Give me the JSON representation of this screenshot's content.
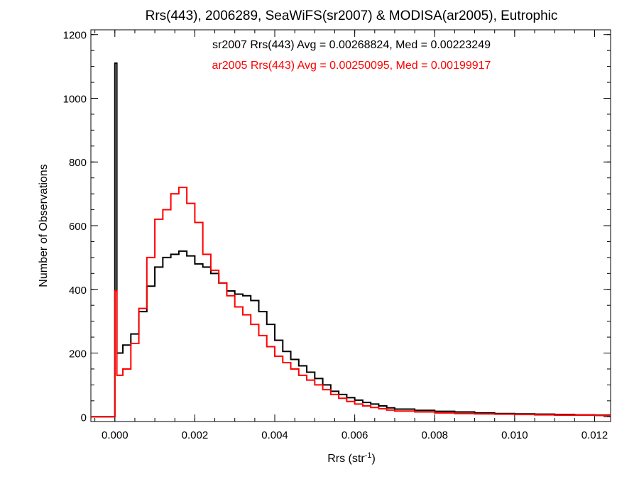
{
  "chart_data": {
    "type": "line",
    "title": "Rrs(443), 2006289, SeaWiFS(sr2007) & MODISA(ar2005), Eutrophic",
    "xlabel": "Rrs (str",
    "xlabel_sup": "-1",
    "xlabel_close": ")",
    "ylabel": "Number of Observations",
    "xlim": [
      -0.0006,
      0.0124
    ],
    "ylim": [
      -15,
      1215
    ],
    "xticks": [
      0.0,
      0.002,
      0.004,
      0.006,
      0.008,
      0.01,
      0.012
    ],
    "xtick_labels": [
      "0.000",
      "0.002",
      "0.004",
      "0.006",
      "0.008",
      "0.010",
      "0.012"
    ],
    "yticks": [
      0,
      200,
      400,
      600,
      800,
      1000,
      1200
    ],
    "ytick_labels": [
      "0",
      "200",
      "400",
      "600",
      "800",
      "1000",
      "1200"
    ],
    "grid": false,
    "step": true,
    "annotations": [
      {
        "text": "sr2007 Rrs(443) Avg = 0.00268824, Med = 0.00223249",
        "color": "#000000"
      },
      {
        "text": "ar2005 Rrs(443) Avg = 0.00250095, Med = 0.00199917",
        "color": "#ff0000"
      }
    ],
    "series": [
      {
        "color": "#000000",
        "x": [
          -0.0006,
          -5e-05,
          0.0,
          5e-05,
          0.0002,
          0.0004,
          0.0006,
          0.0008,
          0.001,
          0.0012,
          0.0014,
          0.0016,
          0.0018,
          0.002,
          0.0022,
          0.0024,
          0.0026,
          0.0028,
          0.003,
          0.0032,
          0.0034,
          0.0036,
          0.0038,
          0.004,
          0.0042,
          0.0044,
          0.0046,
          0.0048,
          0.005,
          0.0052,
          0.0054,
          0.0056,
          0.0058,
          0.006,
          0.0062,
          0.0064,
          0.0066,
          0.0068,
          0.007,
          0.0075,
          0.008,
          0.0085,
          0.009,
          0.0095,
          0.01,
          0.0105,
          0.011,
          0.0115,
          0.012,
          0.0124
        ],
        "y": [
          0,
          0,
          1110,
          200,
          225,
          260,
          330,
          410,
          470,
          500,
          510,
          520,
          505,
          480,
          470,
          450,
          420,
          395,
          385,
          380,
          365,
          330,
          290,
          240,
          205,
          180,
          160,
          140,
          120,
          100,
          80,
          70,
          60,
          52,
          45,
          40,
          34,
          28,
          24,
          20,
          17,
          15,
          12,
          10,
          9,
          8,
          7,
          6,
          5,
          5
        ]
      },
      {
        "color": "#ff0000",
        "x": [
          -0.0006,
          -5e-05,
          0.0,
          5e-05,
          0.0002,
          0.0004,
          0.0006,
          0.0008,
          0.001,
          0.0012,
          0.0014,
          0.0016,
          0.0018,
          0.002,
          0.0022,
          0.0024,
          0.0026,
          0.0028,
          0.003,
          0.0032,
          0.0034,
          0.0036,
          0.0038,
          0.004,
          0.0042,
          0.0044,
          0.0046,
          0.0048,
          0.005,
          0.0052,
          0.0054,
          0.0056,
          0.0058,
          0.006,
          0.0062,
          0.0064,
          0.0066,
          0.0068,
          0.007,
          0.0075,
          0.008,
          0.0085,
          0.009,
          0.0095,
          0.01,
          0.0105,
          0.011,
          0.0115,
          0.012,
          0.0124
        ],
        "y": [
          0,
          0,
          395,
          130,
          150,
          230,
          340,
          500,
          620,
          650,
          700,
          720,
          670,
          610,
          510,
          460,
          420,
          380,
          345,
          320,
          290,
          255,
          220,
          190,
          170,
          150,
          130,
          115,
          100,
          85,
          70,
          58,
          48,
          40,
          34,
          29,
          25,
          21,
          18,
          15,
          12,
          10,
          9,
          8,
          7,
          6,
          5,
          5,
          4,
          4
        ]
      }
    ]
  }
}
